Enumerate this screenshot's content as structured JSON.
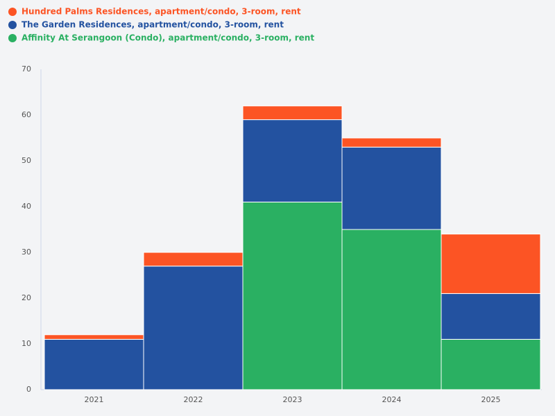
{
  "chart_data": {
    "type": "stacked_bar",
    "categories": [
      "2021",
      "2022",
      "2023",
      "2024",
      "2025"
    ],
    "series": [
      {
        "name": "Hundred Palms Residences, apartment/condo, 3-room, rent",
        "color": "#fc5424",
        "values": [
          1,
          3,
          3,
          2,
          13
        ]
      },
      {
        "name": "The Garden Residences, apartment/condo, 3-room, rent",
        "color": "#2352a0",
        "values": [
          11,
          27,
          18,
          18,
          10
        ]
      },
      {
        "name": "Affinity At Serangoon (Condo), apartment/condo, 3-room, rent",
        "color": "#2ab062",
        "values": [
          0,
          0,
          41,
          35,
          11
        ]
      }
    ],
    "ylim": [
      0,
      70
    ],
    "yticks": [
      0,
      10,
      20,
      30,
      40,
      50,
      60,
      70
    ],
    "legend": "top-left"
  }
}
